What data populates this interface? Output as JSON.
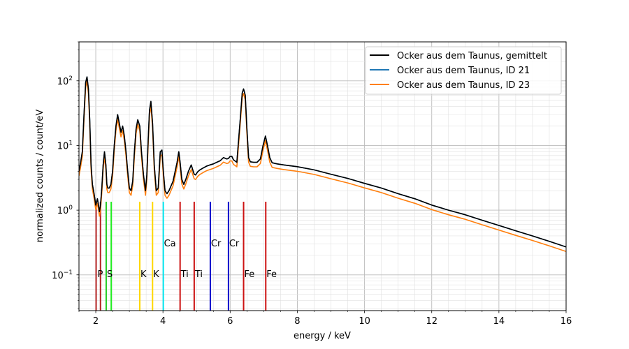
{
  "chart_data": {
    "type": "line",
    "xlabel": "energy / keV",
    "ylabel": "normalized counts / count/eV",
    "xlim": [
      1.5,
      16
    ],
    "ylim": [
      0.028,
      400
    ],
    "yscale": "log",
    "grid": true,
    "legend_position": "top-right",
    "x_ticks": [
      2,
      4,
      6,
      8,
      10,
      12,
      14,
      16
    ],
    "y_ticks": [
      {
        "value": 0.1,
        "base": "10",
        "exp": "−1"
      },
      {
        "value": 1,
        "base": "10",
        "exp": "0"
      },
      {
        "value": 10,
        "base": "10",
        "exp": "1"
      },
      {
        "value": 100,
        "base": "10",
        "exp": "2"
      }
    ],
    "series": [
      {
        "name": "Ocker aus dem Taunus, gemittelt",
        "color": "#000000",
        "scale": 1.0
      },
      {
        "name": "Ocker aus dem Taunus, ID 21",
        "color": "#1f77b4",
        "scale": 1.0
      },
      {
        "name": "Ocker aus dem Taunus, ID 23",
        "color": "#ff7f0e",
        "scale": 0.85
      }
    ],
    "reference_curve": {
      "x": [
        1.5,
        1.55,
        1.6,
        1.65,
        1.7,
        1.74,
        1.78,
        1.82,
        1.86,
        1.9,
        1.95,
        2.0,
        2.05,
        2.08,
        2.11,
        2.14,
        2.18,
        2.22,
        2.26,
        2.3,
        2.33,
        2.36,
        2.4,
        2.45,
        2.5,
        2.55,
        2.6,
        2.65,
        2.7,
        2.75,
        2.8,
        2.85,
        2.9,
        2.95,
        3.0,
        3.05,
        3.1,
        3.15,
        3.2,
        3.25,
        3.31,
        3.36,
        3.42,
        3.48,
        3.52,
        3.56,
        3.6,
        3.64,
        3.69,
        3.74,
        3.8,
        3.86,
        3.92,
        3.97,
        4.01,
        4.06,
        4.12,
        4.18,
        4.3,
        4.42,
        4.47,
        4.51,
        4.56,
        4.62,
        4.68,
        4.76,
        4.84,
        4.9,
        4.93,
        4.97,
        5.03,
        5.1,
        5.2,
        5.3,
        5.4,
        5.5,
        5.6,
        5.7,
        5.8,
        5.9,
        5.95,
        6.0,
        6.05,
        6.1,
        6.2,
        6.3,
        6.36,
        6.4,
        6.45,
        6.5,
        6.55,
        6.6,
        6.7,
        6.8,
        6.9,
        6.98,
        7.05,
        7.11,
        7.18,
        7.25,
        7.4,
        7.6,
        8.0,
        8.5,
        9.0,
        9.5,
        10.0,
        10.5,
        11.0,
        11.5,
        12.0,
        12.5,
        13.0,
        13.5,
        14.0,
        14.5,
        15.0,
        15.5,
        16.0
      ],
      "y": [
        4.0,
        5.5,
        8.0,
        30,
        95,
        115,
        75,
        25,
        5.0,
        2.5,
        1.8,
        1.2,
        1.5,
        1.2,
        0.95,
        1.2,
        2.2,
        5.0,
        8.0,
        5.0,
        2.5,
        2.2,
        2.2,
        2.5,
        4.0,
        10,
        20,
        30,
        22,
        16,
        20,
        14,
        8,
        4,
        2.2,
        2.0,
        2.8,
        8,
        18,
        25,
        20,
        8,
        3.5,
        2.0,
        3.5,
        12,
        35,
        48,
        22,
        5,
        2.0,
        2.2,
        8.0,
        8.5,
        4.0,
        2.0,
        1.8,
        2.0,
        2.8,
        5.5,
        8.0,
        5.5,
        3.0,
        2.5,
        3.0,
        4.0,
        5.0,
        4.0,
        3.6,
        3.5,
        3.9,
        4.2,
        4.5,
        4.8,
        5.0,
        5.2,
        5.5,
        5.8,
        6.5,
        6.2,
        6.3,
        6.8,
        6.8,
        6.0,
        5.5,
        25,
        65,
        75,
        60,
        18,
        6.5,
        5.6,
        5.5,
        5.5,
        6.2,
        10,
        14,
        10,
        6.5,
        5.4,
        5.2,
        5.0,
        4.7,
        4.2,
        3.6,
        3.1,
        2.6,
        2.2,
        1.8,
        1.5,
        1.2,
        1.0,
        0.85,
        0.7,
        0.58,
        0.48,
        0.4,
        0.33,
        0.27
      ]
    },
    "element_lines": [
      {
        "energy": 2.01,
        "color": "#b22222",
        "height": 1.35
      },
      {
        "energy": 2.14,
        "color": "#b22222",
        "height": 1.35
      },
      {
        "energy": 2.31,
        "color": "#22cc22",
        "height": 1.35
      },
      {
        "energy": 2.46,
        "color": "#22ee22",
        "height": 1.35
      },
      {
        "energy": 3.31,
        "color": "#ffd700",
        "height": 1.35
      },
      {
        "energy": 3.69,
        "color": "#ffd700",
        "height": 1.35
      },
      {
        "energy": 4.01,
        "color": "#00e5ee",
        "height": 1.35
      },
      {
        "energy": 4.51,
        "color": "#cc1111",
        "height": 1.35
      },
      {
        "energy": 4.93,
        "color": "#cc1111",
        "height": 1.35
      },
      {
        "energy": 5.41,
        "color": "#0000cc",
        "height": 1.35
      },
      {
        "energy": 5.95,
        "color": "#0000cc",
        "height": 1.35
      },
      {
        "energy": 6.4,
        "color": "#cc1111",
        "height": 1.35
      },
      {
        "energy": 7.06,
        "color": "#cc1111",
        "height": 1.35
      }
    ],
    "element_labels": [
      {
        "text": "P",
        "energy": 2.05,
        "y": 0.105
      },
      {
        "text": "S",
        "energy": 2.33,
        "y": 0.105
      },
      {
        "text": "K",
        "energy": 3.33,
        "y": 0.105
      },
      {
        "text": "K",
        "energy": 3.71,
        "y": 0.105
      },
      {
        "text": "Ca",
        "energy": 4.03,
        "y": 0.31
      },
      {
        "text": "Ti",
        "energy": 4.53,
        "y": 0.105
      },
      {
        "text": "Ti",
        "energy": 4.95,
        "y": 0.105
      },
      {
        "text": "Cr",
        "energy": 5.43,
        "y": 0.31
      },
      {
        "text": "Cr",
        "energy": 5.97,
        "y": 0.31
      },
      {
        "text": "Fe",
        "energy": 6.42,
        "y": 0.105
      },
      {
        "text": "Fe",
        "energy": 7.08,
        "y": 0.105
      }
    ]
  }
}
